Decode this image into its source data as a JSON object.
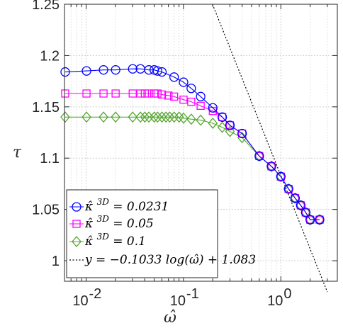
{
  "chart_data": {
    "type": "scatter",
    "xscale": "log",
    "xlim": [
      0.006,
      3.8
    ],
    "ylim": [
      0.98,
      1.25
    ],
    "grid": true,
    "legend_position": "bottom-left",
    "xlabel": "ω̂",
    "ylabel": "τ",
    "x_ticks": [
      {
        "value": 0.01,
        "base": "10",
        "exp": "-2"
      },
      {
        "value": 0.1,
        "base": "10",
        "exp": "-1"
      },
      {
        "value": 1,
        "base": "10",
        "exp": "0"
      }
    ],
    "y_ticks": [
      {
        "value": 1.0,
        "label": "1"
      },
      {
        "value": 1.05,
        "label": "1.05"
      },
      {
        "value": 1.1,
        "label": "1.1"
      },
      {
        "value": 1.15,
        "label": "1.15"
      },
      {
        "value": 1.2,
        "label": "1.2"
      },
      {
        "value": 1.25,
        "label": "1.25"
      }
    ],
    "series": [
      {
        "name": "κ̂³ᴰ = 0.0231",
        "legend_label": "κ̂ ",
        "legend_sup": "3D",
        "legend_value": " = 0.0231",
        "color": "#0000ff",
        "marker": "circle",
        "x": [
          0.0061,
          0.0101,
          0.0151,
          0.0201,
          0.0301,
          0.0361,
          0.0441,
          0.0501,
          0.0541,
          0.0601,
          0.0801,
          0.1001,
          0.1201,
          0.1501,
          0.2001,
          0.2501,
          0.3001,
          0.4001,
          0.6001,
          0.8001,
          1.0001,
          1.2001,
          1.4001,
          1.6001,
          1.8001,
          2.0001,
          2.5001
        ],
        "y": [
          1.184,
          1.185,
          1.186,
          1.186,
          1.187,
          1.187,
          1.186,
          1.186,
          1.185,
          1.184,
          1.179,
          1.174,
          1.168,
          1.16,
          1.149,
          1.14,
          1.132,
          1.124,
          1.102,
          1.092,
          1.082,
          1.07,
          1.061,
          1.054,
          1.047,
          1.04,
          1.04
        ]
      },
      {
        "name": "κ̂³ᴰ = 0.05",
        "legend_label": "κ̂ ",
        "legend_sup": "3D",
        "legend_value": " = 0.05",
        "color": "#ff00ff",
        "marker": "square",
        "x": [
          0.0061,
          0.0101,
          0.0151,
          0.0201,
          0.0301,
          0.0361,
          0.0401,
          0.0441,
          0.0501,
          0.0541,
          0.0601,
          0.0701,
          0.0801,
          0.1001,
          0.1201,
          0.1501,
          0.2001,
          0.2501,
          0.3001,
          0.4001,
          0.6001,
          0.8001,
          1.0001,
          1.2001,
          1.4001,
          1.6001,
          1.8001,
          2.0001,
          2.5001
        ],
        "y": [
          1.163,
          1.163,
          1.163,
          1.163,
          1.163,
          1.163,
          1.163,
          1.163,
          1.163,
          1.163,
          1.162,
          1.161,
          1.16,
          1.157,
          1.155,
          1.151,
          1.146,
          1.14,
          1.132,
          1.124,
          1.102,
          1.092,
          1.082,
          1.07,
          1.061,
          1.054,
          1.047,
          1.04,
          1.04
        ]
      },
      {
        "name": "κ̂³ᴰ = 0.1",
        "legend_label": "κ̂ ",
        "legend_sup": "3D",
        "legend_value": " = 0.1",
        "color": "#55a630",
        "marker": "diamond",
        "x": [
          0.0061,
          0.0101,
          0.0151,
          0.0201,
          0.0301,
          0.0361,
          0.0401,
          0.0441,
          0.0501,
          0.0541,
          0.0601,
          0.0661,
          0.0721,
          0.0801,
          0.0901,
          0.1001,
          0.1201,
          0.1501,
          0.2001,
          0.2501,
          0.3001,
          0.4001,
          0.6001,
          0.8001,
          1.0001,
          1.2001,
          1.4001,
          1.6001,
          1.8001,
          2.0001,
          2.5001
        ],
        "y": [
          1.14,
          1.14,
          1.14,
          1.14,
          1.14,
          1.14,
          1.14,
          1.14,
          1.14,
          1.14,
          1.14,
          1.14,
          1.14,
          1.14,
          1.14,
          1.139,
          1.138,
          1.137,
          1.134,
          1.13,
          1.126,
          1.12,
          1.102,
          1.092,
          1.082,
          1.07,
          1.061,
          1.054,
          1.047,
          1.04,
          1.04
        ]
      }
    ],
    "fit_line": {
      "name": "y = −0.1033 log(ω̂) + 1.083",
      "legend_label": "y = −0.1033 log(ω̂) + 1.083",
      "slope": -0.1033,
      "intercept": 1.083,
      "color": "#000000",
      "style": "dotted"
    }
  }
}
